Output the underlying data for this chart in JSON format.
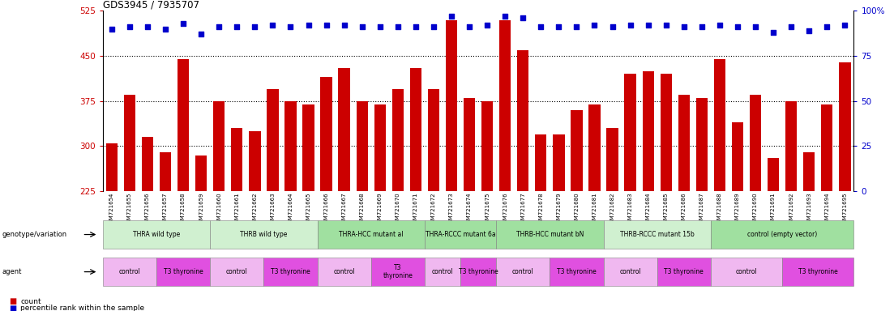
{
  "title": "GDS3945 / 7935707",
  "samples": [
    "GSM721654",
    "GSM721655",
    "GSM721656",
    "GSM721657",
    "GSM721658",
    "GSM721659",
    "GSM721660",
    "GSM721661",
    "GSM721662",
    "GSM721663",
    "GSM721664",
    "GSM721665",
    "GSM721666",
    "GSM721667",
    "GSM721668",
    "GSM721669",
    "GSM721670",
    "GSM721671",
    "GSM721672",
    "GSM721673",
    "GSM721674",
    "GSM721675",
    "GSM721676",
    "GSM721677",
    "GSM721678",
    "GSM721679",
    "GSM721680",
    "GSM721681",
    "GSM721682",
    "GSM721683",
    "GSM721684",
    "GSM721685",
    "GSM721686",
    "GSM721687",
    "GSM721688",
    "GSM721689",
    "GSM721690",
    "GSM721691",
    "GSM721692",
    "GSM721693",
    "GSM721694",
    "GSM721695"
  ],
  "bar_values": [
    305,
    385,
    315,
    290,
    445,
    285,
    375,
    330,
    325,
    395,
    375,
    370,
    415,
    430,
    375,
    370,
    395,
    430,
    395,
    510,
    380,
    375,
    510,
    460,
    320,
    320,
    360,
    370,
    330,
    420,
    425,
    420,
    385,
    380,
    445,
    340,
    385,
    280,
    375,
    290,
    370,
    440
  ],
  "percentile_values": [
    90,
    91,
    91,
    90,
    93,
    87,
    91,
    91,
    91,
    92,
    91,
    92,
    92,
    92,
    91,
    91,
    91,
    91,
    91,
    97,
    91,
    92,
    97,
    96,
    91,
    91,
    91,
    92,
    91,
    92,
    92,
    92,
    91,
    91,
    92,
    91,
    91,
    88,
    91,
    89,
    91,
    92
  ],
  "bar_color": "#cc0000",
  "dot_color": "#0000cc",
  "ylim_left": [
    225,
    525
  ],
  "ylim_right": [
    0,
    100
  ],
  "yticks_left": [
    225,
    300,
    375,
    450,
    525
  ],
  "yticks_right": [
    0,
    25,
    50,
    75,
    100
  ],
  "hline_values": [
    300,
    375,
    450
  ],
  "genotype_groups": [
    {
      "label": "THRA wild type",
      "start": 0,
      "end": 5,
      "color": "#d0f0d0"
    },
    {
      "label": "THRB wild type",
      "start": 6,
      "end": 11,
      "color": "#d0f0d0"
    },
    {
      "label": "THRA-HCC mutant al",
      "start": 12,
      "end": 17,
      "color": "#a0e0a0"
    },
    {
      "label": "THRA-RCCC mutant 6a",
      "start": 18,
      "end": 21,
      "color": "#a0e0a0"
    },
    {
      "label": "THRB-HCC mutant bN",
      "start": 22,
      "end": 27,
      "color": "#a0e0a0"
    },
    {
      "label": "THRB-RCCC mutant 15b",
      "start": 28,
      "end": 33,
      "color": "#d0f0d0"
    },
    {
      "label": "control (empty vector)",
      "start": 34,
      "end": 41,
      "color": "#a0e0a0"
    }
  ],
  "agent_groups": [
    {
      "label": "control",
      "start": 0,
      "end": 2,
      "color": "#f0b8f0"
    },
    {
      "label": "T3 thyronine",
      "start": 3,
      "end": 5,
      "color": "#e050e0"
    },
    {
      "label": "control",
      "start": 6,
      "end": 8,
      "color": "#f0b8f0"
    },
    {
      "label": "T3 thyronine",
      "start": 9,
      "end": 11,
      "color": "#e050e0"
    },
    {
      "label": "control",
      "start": 12,
      "end": 14,
      "color": "#f0b8f0"
    },
    {
      "label": "T3\nthyronine",
      "start": 15,
      "end": 17,
      "color": "#e050e0"
    },
    {
      "label": "control",
      "start": 18,
      "end": 19,
      "color": "#f0b8f0"
    },
    {
      "label": "T3 thyronine",
      "start": 20,
      "end": 21,
      "color": "#e050e0"
    },
    {
      "label": "control",
      "start": 22,
      "end": 24,
      "color": "#f0b8f0"
    },
    {
      "label": "T3 thyronine",
      "start": 25,
      "end": 27,
      "color": "#e050e0"
    },
    {
      "label": "control",
      "start": 28,
      "end": 30,
      "color": "#f0b8f0"
    },
    {
      "label": "T3 thyronine",
      "start": 31,
      "end": 33,
      "color": "#e050e0"
    },
    {
      "label": "control",
      "start": 34,
      "end": 37,
      "color": "#f0b8f0"
    },
    {
      "label": "T3 thyronine",
      "start": 38,
      "end": 41,
      "color": "#e050e0"
    }
  ]
}
